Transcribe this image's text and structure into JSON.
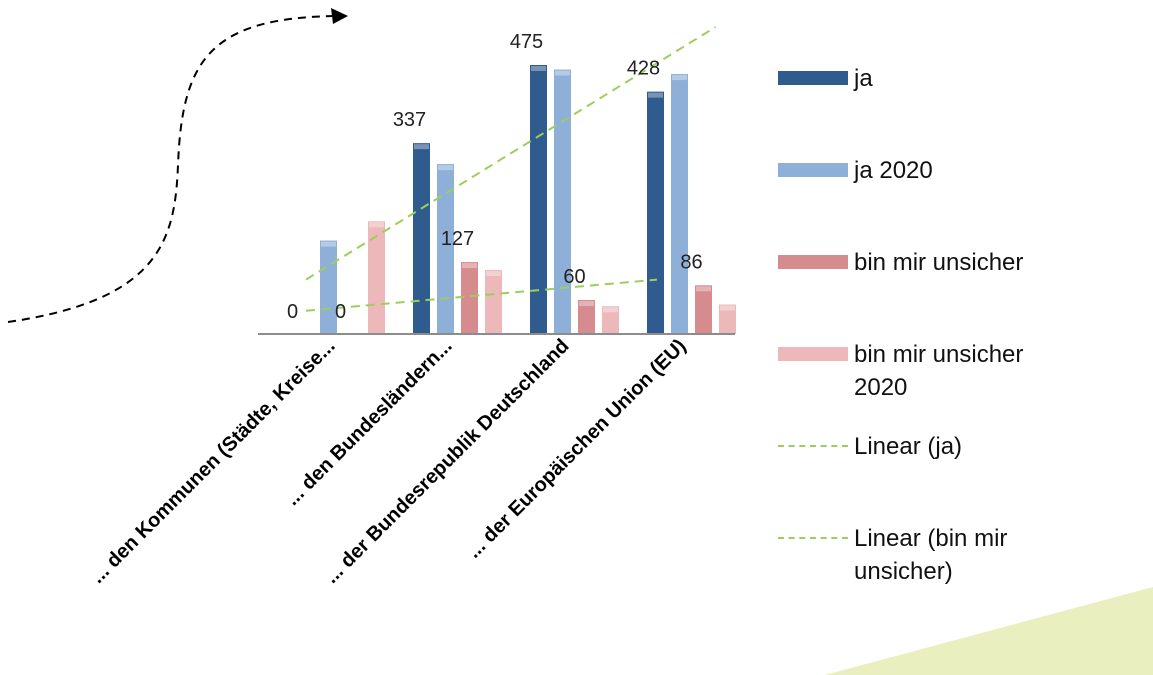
{
  "chart_data": {
    "type": "bar",
    "categories": [
      "... den Kommunen (Städte, Kreise...",
      "... den Bundesländern...",
      "... der Bundesrepublik Deutschland",
      "... der Europäischen Union (EU)"
    ],
    "series": [
      {
        "name": "ja",
        "values": [
          0,
          337,
          475,
          428
        ],
        "color": "#2f5b8f"
      },
      {
        "name": "ja 2020",
        "values": [
          165,
          300,
          467,
          459
        ],
        "color": "#8eb0d8"
      },
      {
        "name": "bin mir unsicher",
        "values": [
          0,
          127,
          60,
          86
        ],
        "color": "#d68b8f"
      },
      {
        "name": "bin mir unsicher 2020",
        "values": [
          199,
          113,
          49,
          52
        ],
        "color": "#ecb8ba"
      }
    ],
    "data_labels": {
      "ja": [
        "0",
        "337",
        "475",
        "428"
      ],
      "bin mir unsicher": [
        "0",
        "127",
        "60",
        "86"
      ]
    },
    "trendlines": [
      {
        "name": "Linear (ja)",
        "x": [
          1,
          4.5
        ],
        "y": [
          96,
          542
        ],
        "color": "#9ccf5a",
        "style": "dashed"
      },
      {
        "name": "Linear (bin mir unsicher)",
        "x": [
          1,
          4
        ],
        "y": [
          41,
          96
        ],
        "color": "#9ccf5a",
        "style": "dashed"
      }
    ],
    "ylim": [
      0,
      560
    ],
    "legend_position": "right",
    "grid": false
  },
  "legend": {
    "items": [
      {
        "label": "ja",
        "kind": "bar",
        "color": "#2f5b8f"
      },
      {
        "label": "ja 2020",
        "kind": "bar",
        "color": "#8eb0d8"
      },
      {
        "label": "bin mir unsicher",
        "kind": "bar",
        "color": "#d68b8f"
      },
      {
        "label": "bin mir unsicher 2020",
        "kind": "bar",
        "color": "#ecb8ba"
      },
      {
        "label": "Linear (ja)",
        "kind": "line",
        "color": "#9ccf5a"
      },
      {
        "label": "Linear (bin mir unsicher)",
        "kind": "line",
        "color": "#9ccf5a"
      }
    ]
  },
  "decorations": {
    "arrow": "dashed-curved-arrow",
    "corner_shape_color": "#eaefbf"
  }
}
